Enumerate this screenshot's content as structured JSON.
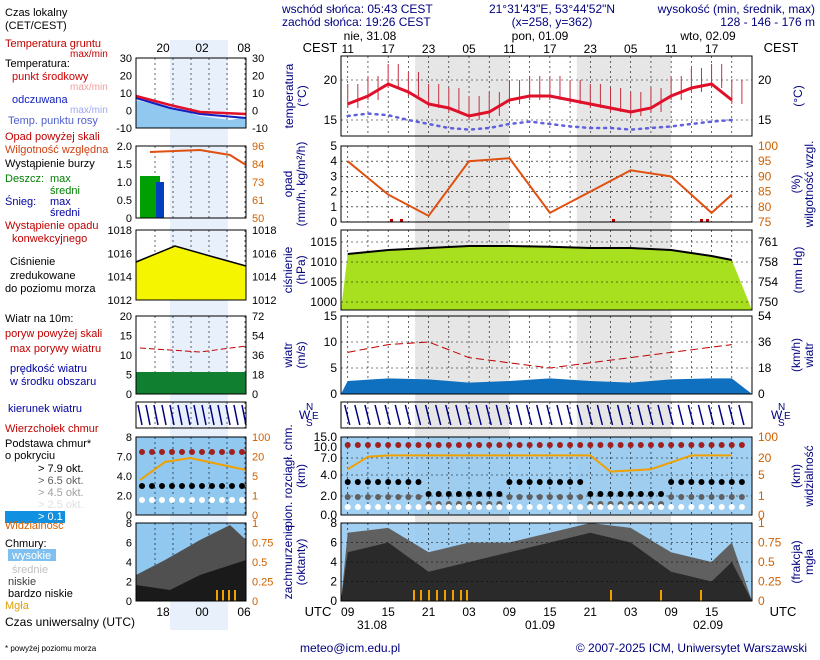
{
  "header": {
    "sunrise": "wschód słońca: 05:43 CEST",
    "sunset": "zachód słońca: 19:26 CEST",
    "coords": "21°31'43\"E, 53°44'52\"N",
    "grid": "(x=258, y=362)",
    "elevation_title": "wysokość (min, średnik, max)",
    "elevation_values": "128 - 146 - 176 m"
  },
  "legend": {
    "local_time": "Czas lokalny",
    "local_time_sub": "(CET/CEST)",
    "soil_temp": "Temperatura gruntu",
    "max_min": "max/min",
    "temperature": "Temperatura:",
    "mid_point": "punkt środkowy",
    "max_min2": "max/min",
    "felt": "odczuwana",
    "max_min3": "max/min",
    "dew_point": "Temp. punktu rosy",
    "precip_above": "Opad powyżej skali",
    "humidity": "Wilgotność względna",
    "storm": "Wystąpienie burzy",
    "rain": "Deszcz:",
    "rain_max": "max",
    "rain_mean": "średni",
    "snow": "Śnieg:",
    "snow_max": "max",
    "snow_mean": "średni",
    "conv": "Wystąpienie opadu",
    "conv2": "konwekcyjnego",
    "pressure1": "Ciśnienie",
    "pressure2": "zredukowane",
    "pressure3": "do poziomu morza",
    "wind_title": "Wiatr na 10m:",
    "gust_above": "poryw powyżej skali",
    "gust_max": "max porywy wiatru",
    "wind_mean1": "prędkość wiatru",
    "wind_mean2": "w środku obszaru",
    "wind_dir": "kierunek wiatru",
    "cloud_top": "Wierzchołek chmur",
    "cloud_base1": "Podstawa chmur*",
    "cloud_base2": "o pokryciu",
    "okt1": "> 7.9 okt.",
    "okt2": "> 6.5 okt.",
    "okt3": "> 4.5 okt.",
    "okt4": "> 2.5 okt.",
    "okt5": "> 0.1 okt.",
    "visibility": "Widzialność",
    "clouds": "Chmury:",
    "high": "wysokie",
    "mid": "średnie",
    "low": "niskie",
    "very_low": "bardzo niskie",
    "fog": "Mgła",
    "utc": "Czas uniwersalny (UTC)",
    "footnote": "* powyżej poziomu morza",
    "local_ticks": [
      "20",
      "02",
      "08"
    ],
    "utc_ticks": [
      "18",
      "00",
      "06"
    ]
  },
  "axes": {
    "cest": "CEST",
    "utc": "UTC",
    "day_labels": [
      "nie, 31.08",
      "pon, 01.09",
      "wto, 02.09"
    ],
    "date_labels": [
      "31.08",
      "01.09",
      "02.09"
    ],
    "hours_top": [
      "11",
      "17",
      "23",
      "05",
      "11",
      "17",
      "23",
      "05",
      "11",
      "17"
    ],
    "hours_bottom": [
      "09",
      "15",
      "21",
      "03",
      "09",
      "15",
      "21",
      "03",
      "09",
      "15"
    ],
    "temp_left": "temperatura",
    "temp_left_u": "(°C)",
    "temp_right_u": "(°C)",
    "precip_left": "opad",
    "precip_left_u": "(mm/h, kg/m²/h)",
    "precip_right": "wilgotność wzgl.",
    "precip_right_u": "(%)",
    "press_left": "ciśnienie",
    "press_left_u": "(hPa)",
    "press_right_u": "(mm Hg)",
    "wind_left": "wiatr",
    "wind_left_u": "(m/s)",
    "wind_right": "wiatr",
    "wind_right_u": "(km/h)",
    "cloud_left1": "pion. rozciągł. chm.",
    "cloud_left2": "(km)",
    "cloud_right1": "widzialność",
    "cloud_right2": "(km)",
    "cover_left1": "zachmurzenie",
    "cover_left2": "(oktanty)",
    "cover_right1": "mgła",
    "cover_right2": "(frakcja)",
    "dir_labels": [
      "W",
      "N",
      "E",
      "S"
    ]
  },
  "footer": {
    "email": "meteo@icm.edu.pl",
    "copyright": "© 2007-2025 ICM, Uniwersytet Warszawski"
  },
  "ticks": {
    "temp_left": [
      "20",
      "15"
    ],
    "temp_right": [
      "20",
      "15"
    ],
    "precip_left": [
      "5",
      "4",
      "3",
      "2",
      "1",
      "0"
    ],
    "precip_right": [
      "100",
      "95",
      "90",
      "85",
      "80",
      "75"
    ],
    "press_left": [
      "1015",
      "1010",
      "1005",
      "1000"
    ],
    "press_right": [
      "761",
      "758",
      "754",
      "750"
    ],
    "wind_left": [
      "15",
      "10",
      "5",
      "0"
    ],
    "wind_right": [
      "54",
      "36",
      "18",
      "0"
    ],
    "cloud_left": [
      "15.0",
      "10.0",
      "7.0",
      "4.0",
      "2.0",
      "0.0"
    ],
    "cloud_right": [
      "100",
      "20",
      "5",
      "1",
      "0"
    ],
    "cover_left": [
      "8",
      "6",
      "4",
      "2",
      "0"
    ],
    "cover_right": [
      "1",
      "0.75",
      "0.5",
      "0.25",
      "0"
    ],
    "leg_temp_left": [
      "30",
      "20",
      "10",
      "0",
      "-10"
    ],
    "leg_temp_right": [
      "30",
      "20",
      "10",
      "0",
      "-10"
    ],
    "leg_prec_left": [
      "2.0",
      "1.5",
      "1.0",
      "0.5",
      "0"
    ],
    "leg_prec_right": [
      "96",
      "84",
      "73",
      "61",
      "50"
    ],
    "leg_press_left": [
      "1018",
      "1016",
      "1014",
      "1012"
    ],
    "leg_press_right": [
      "1018",
      "1016",
      "1014",
      "1012"
    ],
    "leg_wind_left": [
      "20",
      "15",
      "10",
      "5",
      "0"
    ],
    "leg_wind_right": [
      "72",
      "54",
      "36",
      "18",
      "0"
    ],
    "leg_cloud_left": [
      "8",
      "7.0",
      "4.0",
      "2.0",
      "0"
    ],
    "leg_cloud_right": [
      "100",
      "20",
      "5",
      "1",
      "0"
    ],
    "leg_cover_left": [
      "8",
      "6",
      "4",
      "2",
      "0"
    ],
    "leg_cover_right": [
      "1",
      "0.75",
      "0.5",
      "0.25",
      "0"
    ]
  },
  "colors": {
    "temp": "#e0102a",
    "felt": "#1020c0",
    "dew": "#6060e0",
    "humidity": "#e05010",
    "pressure_fill": "#a8e020",
    "wind_fill": "#1070c0",
    "sky": "#90c8f0",
    "dark": "#303030",
    "fog": "#f0a000",
    "orange_axis": "#d06000",
    "navy": "#000080"
  },
  "chart_data": [
    {
      "type": "line",
      "title": "temperatura",
      "unit": "°C",
      "ylim": [
        13,
        23
      ],
      "x": [
        "31.08 09",
        "31.08 12",
        "31.08 15",
        "31.08 18",
        "31.08 21",
        "01.09 00",
        "01.09 03",
        "01.09 06",
        "01.09 09",
        "01.09 12",
        "01.09 15",
        "01.09 18",
        "01.09 21",
        "02.09 00",
        "02.09 03",
        "02.09 06",
        "02.09 09",
        "02.09 12",
        "02.09 15",
        "02.09 18"
      ],
      "series": [
        {
          "name": "temperatura",
          "values": [
            17,
            18,
            19.5,
            18.5,
            17,
            16.5,
            15.5,
            16,
            17.5,
            18,
            18,
            17.5,
            17,
            16.5,
            16,
            16.5,
            18,
            19,
            19.5,
            17.5
          ]
        },
        {
          "name": "punkt rosy",
          "values": [
            15.5,
            15.8,
            15.6,
            15,
            14.5,
            14,
            13.8,
            14,
            14.5,
            14.8,
            14.5,
            14.2,
            14,
            14,
            13.8,
            14,
            14.2,
            14.5,
            14.8,
            15
          ]
        }
      ]
    },
    {
      "type": "line",
      "title": "opad / wilgotność",
      "unit": "%",
      "ylim": [
        75,
        100
      ],
      "x": [
        "31.08 09",
        "31.08 15",
        "31.08 21",
        "01.09 03",
        "01.09 09",
        "01.09 15",
        "01.09 21",
        "02.09 03",
        "02.09 09",
        "02.09 15",
        "02.09 18"
      ],
      "series": [
        {
          "name": "wilgotność",
          "values": [
            95,
            84,
            77,
            95,
            96,
            78,
            85,
            92,
            90,
            78,
            84
          ]
        }
      ]
    },
    {
      "type": "area",
      "title": "ciśnienie",
      "unit": "hPa",
      "ylim": [
        998,
        1018
      ],
      "x": [
        "31.08 09",
        "31.08 15",
        "31.08 21",
        "01.09 03",
        "01.09 09",
        "01.09 15",
        "01.09 21",
        "02.09 03",
        "02.09 09",
        "02.09 15",
        "02.09 18"
      ],
      "series": [
        {
          "name": "ciśnienie",
          "values": [
            1012,
            1013,
            1013.5,
            1014,
            1014,
            1013.8,
            1013.5,
            1013.5,
            1013,
            1011.5,
            1010.5
          ]
        }
      ]
    },
    {
      "type": "area",
      "title": "wiatr",
      "unit": "m/s",
      "ylim": [
        0,
        15
      ],
      "x": [
        "31.08 09",
        "31.08 15",
        "31.08 21",
        "01.09 03",
        "01.09 09",
        "01.09 15",
        "01.09 21",
        "02.09 03",
        "02.09 09",
        "02.09 15",
        "02.09 18"
      ],
      "series": [
        {
          "name": "prędkość",
          "values": [
            2.5,
            3,
            2.8,
            2.2,
            2.5,
            3,
            2.5,
            2.2,
            2.8,
            3,
            3
          ]
        },
        {
          "name": "porywy",
          "values": [
            8,
            9.5,
            10,
            7,
            6,
            5,
            6,
            7,
            8,
            9,
            9.5
          ]
        }
      ]
    },
    {
      "type": "line",
      "title": "widzialność",
      "unit": "km",
      "ylim": [
        0,
        100
      ],
      "x": [
        "31.08 09",
        "31.08 12",
        "31.08 15",
        "31.08 21",
        "01.09 03",
        "01.09 09",
        "01.09 15",
        "01.09 21",
        "02.09 00",
        "02.09 06",
        "02.09 12",
        "02.09 18"
      ],
      "series": [
        {
          "name": "widzialność",
          "values": [
            10,
            25,
            30,
            30,
            30,
            30,
            30,
            30,
            8,
            10,
            30,
            30
          ]
        }
      ]
    },
    {
      "type": "area",
      "title": "zachmurzenie",
      "unit": "oktanty",
      "ylim": [
        0,
        8
      ],
      "x": [
        "31.08 09",
        "31.08 15",
        "31.08 21",
        "01.09 03",
        "01.09 09",
        "01.09 15",
        "01.09 21",
        "02.09 03",
        "02.09 09",
        "02.09 15",
        "02.09 18"
      ],
      "series": [
        {
          "name": "niskie",
          "values": [
            5,
            6,
            3,
            4,
            5,
            6,
            7,
            6,
            3,
            2,
            4
          ]
        },
        {
          "name": "średnie",
          "values": [
            7,
            7.5,
            5,
            6,
            6,
            7,
            8,
            7.5,
            5,
            4,
            6
          ]
        }
      ]
    }
  ]
}
